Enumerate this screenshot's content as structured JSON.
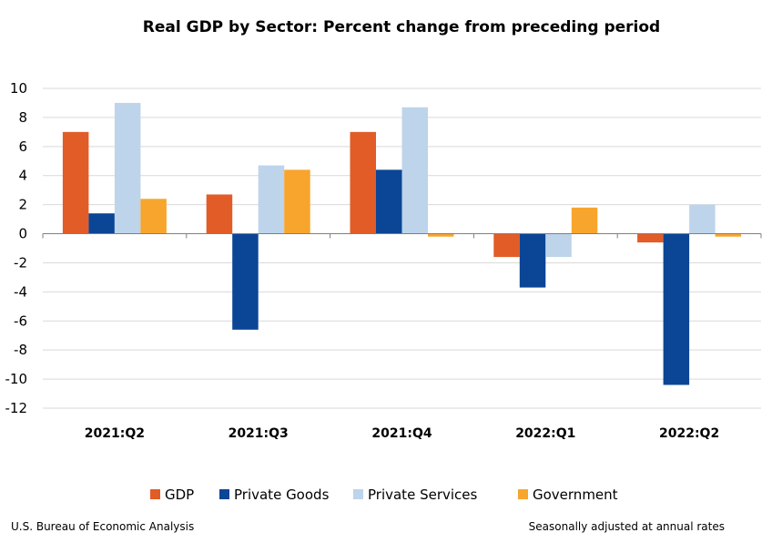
{
  "chart_data": {
    "type": "bar",
    "title": "Real GDP by Sector:  Percent change from preceding period",
    "xlabel": "",
    "ylabel": "",
    "categories": [
      "2021:Q2",
      "2021:Q3",
      "2021:Q4",
      "2022:Q1",
      "2022:Q2"
    ],
    "series": [
      {
        "name": "GDP",
        "color": "#E15C27",
        "values": [
          7.0,
          2.7,
          7.0,
          -1.6,
          -0.6
        ]
      },
      {
        "name": "Private Goods",
        "color": "#0B4596",
        "values": [
          1.4,
          -6.6,
          4.4,
          -3.7,
          -10.4
        ]
      },
      {
        "name": "Private Services",
        "color": "#BDD4EB",
        "values": [
          9.0,
          4.7,
          8.7,
          -1.6,
          2.0
        ]
      },
      {
        "name": "Government",
        "color": "#F7A52D",
        "values": [
          2.4,
          4.4,
          -0.2,
          1.8,
          -0.2
        ]
      }
    ],
    "ylim": [
      -12,
      10
    ],
    "yticks": [
      10,
      8,
      6,
      4,
      2,
      0,
      -2,
      -4,
      -6,
      -8,
      -10,
      -12
    ],
    "grid": true,
    "legend_position": "bottom"
  },
  "footer": {
    "source": "U.S. Bureau of Economic Analysis",
    "note": "Seasonally adjusted at annual rates"
  }
}
